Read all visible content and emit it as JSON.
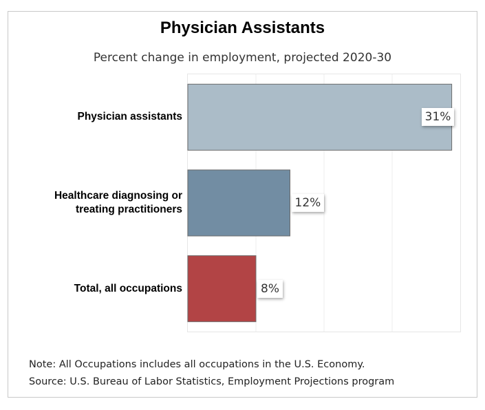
{
  "title": "Physician Assistants",
  "subtitle": "Percent change in employment, projected 2020-30",
  "note": "Note: All Occupations includes all occupations in the U.S. Economy.",
  "source": "Source: U.S. Bureau of Labor Statistics, Employment Projections program",
  "chart_data": {
    "type": "bar",
    "orientation": "horizontal",
    "title": "Physician Assistants",
    "subtitle": "Percent change in employment, projected 2020-30",
    "categories": [
      "Physician assistants",
      "Healthcare diagnosing or treating practitioners",
      "Total, all occupations"
    ],
    "category_lines": [
      [
        "Physician assistants"
      ],
      [
        "Healthcare diagnosing or",
        "treating practitioners"
      ],
      [
        "Total, all occupations"
      ]
    ],
    "values": [
      31,
      12,
      8
    ],
    "data_labels": [
      "31%",
      "12%",
      "8%"
    ],
    "colors": [
      "#abbcc8",
      "#728da3",
      "#b24445"
    ],
    "xlim": [
      0,
      32
    ],
    "grid": true,
    "legend": "none"
  }
}
